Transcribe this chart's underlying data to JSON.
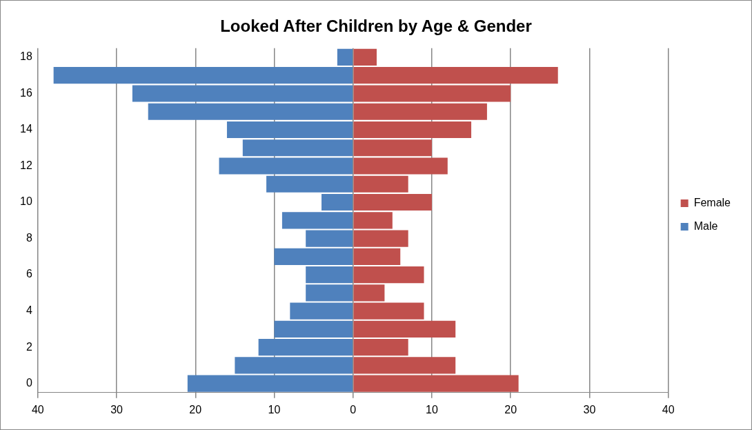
{
  "chart_data": {
    "type": "bar",
    "orientation": "horizontal",
    "stacked": true,
    "title": "Looked After Children by Age & Gender",
    "categories": [
      "18",
      null,
      "16",
      null,
      "14",
      null,
      "12",
      null,
      "10",
      null,
      "8",
      null,
      "6",
      null,
      "4",
      null,
      "2",
      null,
      "0"
    ],
    "series": [
      {
        "name": "Female",
        "color": "#c0504d",
        "values": [
          3,
          26,
          20,
          17,
          15,
          10,
          12,
          7,
          10,
          5,
          7,
          6,
          9,
          4,
          9,
          13,
          7,
          13,
          21
        ]
      },
      {
        "name": "Male",
        "color": "#4f81bd",
        "values": [
          -2,
          -38,
          -28,
          -26,
          -16,
          -14,
          -17,
          -11,
          -4,
          -9,
          -6,
          -10,
          -6,
          -6,
          -8,
          -10,
          -12,
          -15,
          -21
        ]
      }
    ],
    "xlim": [
      -40,
      40
    ],
    "xticks": [
      {
        "value": -40,
        "label": "40"
      },
      {
        "value": -30,
        "label": "30"
      },
      {
        "value": -20,
        "label": "20"
      },
      {
        "value": -10,
        "label": "10"
      },
      0,
      10,
      20,
      30,
      40
    ],
    "grid": "x",
    "legend": "right"
  }
}
